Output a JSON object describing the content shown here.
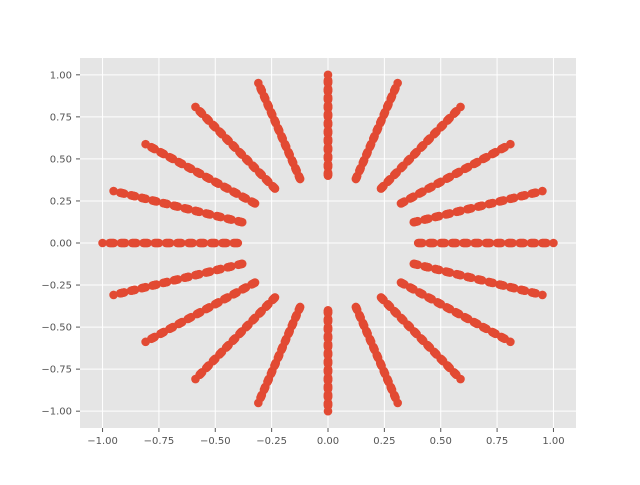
{
  "chart_data": {
    "type": "scatter",
    "title": "",
    "xlabel": "",
    "ylabel": "",
    "xlim": [
      -1.1,
      1.1
    ],
    "ylim": [
      -1.1,
      1.1
    ],
    "xticks": [
      "−1.00",
      "−0.75",
      "−0.50",
      "−0.25",
      "0.00",
      "0.25",
      "0.50",
      "0.75",
      "1.00"
    ],
    "yticks": [
      "−1.00",
      "−0.75",
      "−0.50",
      "−0.25",
      "0.00",
      "0.25",
      "0.50",
      "0.75",
      "1.00"
    ],
    "xtick_values": [
      -1,
      -0.75,
      -0.5,
      -0.25,
      0,
      0.25,
      0.5,
      0.75,
      1
    ],
    "ytick_values": [
      -1,
      -0.75,
      -0.5,
      -0.25,
      0,
      0.25,
      0.5,
      0.75,
      1
    ],
    "grid": true,
    "style": {
      "background": "#e5e5e5",
      "grid_color": "#ffffff",
      "point_color": "#e24a33",
      "tick_color": "#555555"
    },
    "pattern": {
      "description": "polar grid of points",
      "radii": [
        0.4,
        0.45,
        0.5,
        0.55,
        0.6,
        0.65,
        0.7,
        0.75,
        0.8,
        0.85,
        0.9,
        0.95,
        1.0
      ],
      "angles_deg": [
        0,
        18,
        36,
        54,
        72,
        90,
        108,
        126,
        144,
        162,
        180,
        198,
        216,
        234,
        252,
        270,
        288,
        306,
        324,
        342
      ],
      "densify_per_segment": 6
    }
  }
}
